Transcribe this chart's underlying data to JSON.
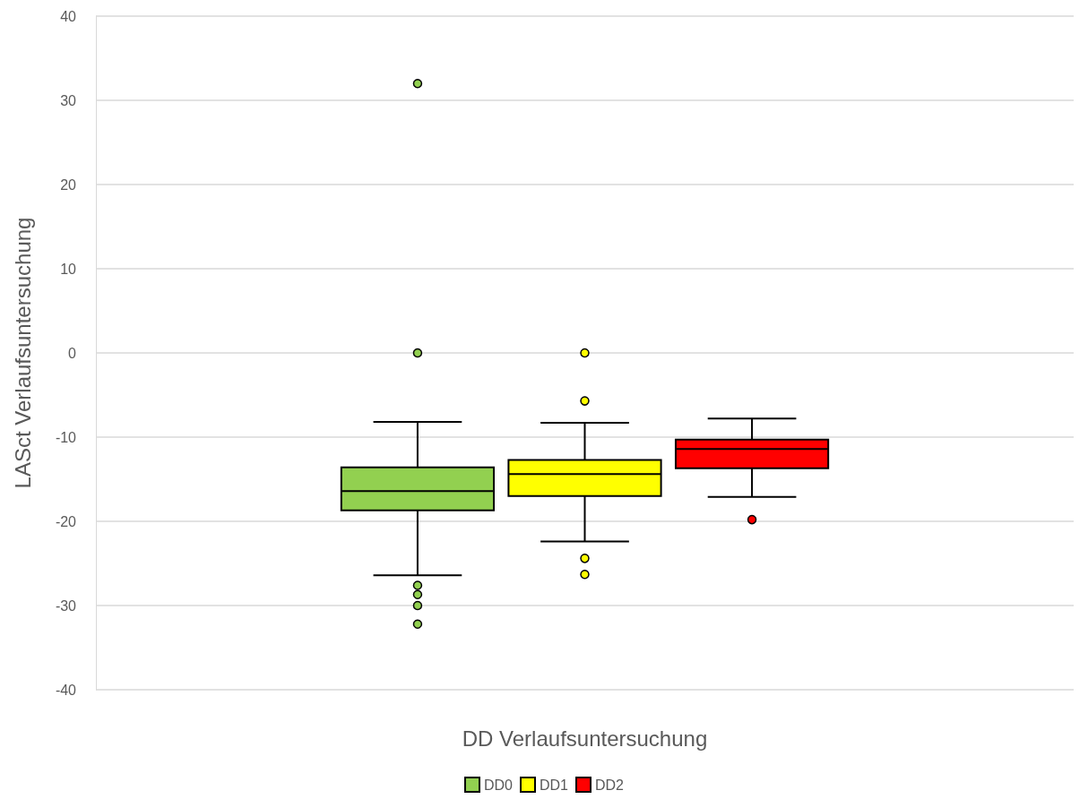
{
  "chart_data": {
    "type": "box",
    "xlabel": "DD Verlaufsuntersuchung",
    "ylabel": "LASct Verlaufsuntersuchung",
    "categories": [
      null
    ],
    "series": [
      {
        "name": "DD0",
        "color": "#92d050",
        "boxes": [
          {
            "low": -26.4,
            "q1": -18.7,
            "median": -16.4,
            "q3": -13.6,
            "high": -8.2,
            "outliers": [
              32,
              0,
              -27.6,
              -28.7,
              -30,
              -32.2
            ]
          }
        ]
      },
      {
        "name": "DD1",
        "color": "#ffff00",
        "boxes": [
          {
            "low": -22.4,
            "q1": -17,
            "median": -14.4,
            "q3": -12.7,
            "high": -8.3,
            "outliers": [
              0,
              -5.7,
              -24.4,
              -26.3
            ]
          }
        ]
      },
      {
        "name": "DD2",
        "color": "#ff0000",
        "boxes": [
          {
            "low": -17.1,
            "q1": -13.7,
            "median": -11.4,
            "q3": -10.3,
            "high": -7.8,
            "outliers": [
              -19.8
            ]
          }
        ]
      }
    ],
    "ylim": [
      -40,
      40
    ],
    "yticks": [
      -40,
      -30,
      -20,
      -10,
      0,
      10,
      20,
      30,
      40
    ],
    "grid": "y",
    "legend": "bottom"
  }
}
